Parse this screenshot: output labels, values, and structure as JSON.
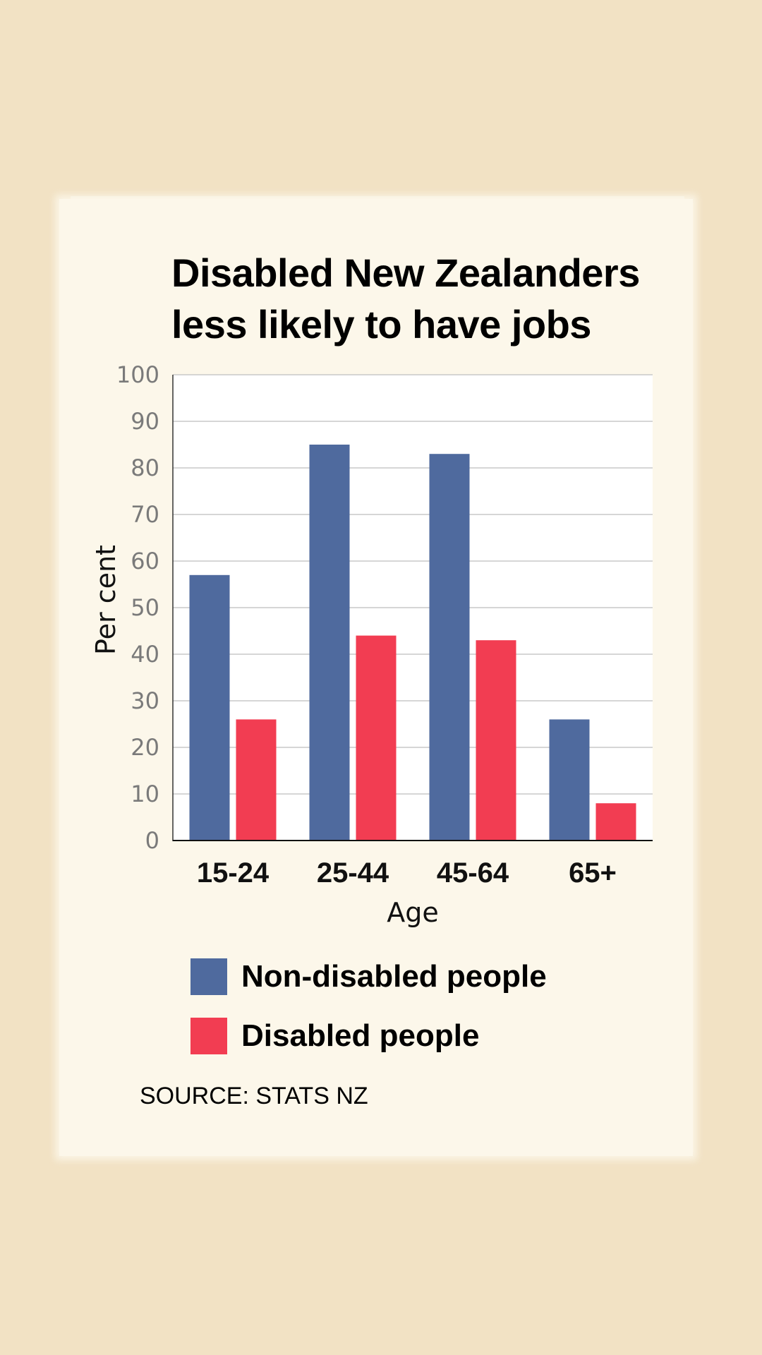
{
  "title": "Disabled New Zealanders less likely to have jobs",
  "title_lines": [
    "Disabled New Zealanders",
    "less likely to have jobs"
  ],
  "source": "SOURCE: STATS NZ",
  "colors": {
    "background": "#F2E2C4",
    "panel": "#FCF7EA",
    "non_disabled": "#4F6A9E",
    "disabled": "#F23D52",
    "grid": "#C8C8C8"
  },
  "chart_data": {
    "type": "bar",
    "title": "Disabled New Zealanders less likely to have jobs",
    "xlabel": "Age",
    "ylabel": "Per cent",
    "categories": [
      "15-24",
      "25-44",
      "45-64",
      "65+"
    ],
    "series": [
      {
        "name": "Non-disabled people",
        "color": "#4F6A9E",
        "values": [
          57,
          85,
          83,
          26
        ]
      },
      {
        "name": "Disabled people",
        "color": "#F23D52",
        "values": [
          26,
          44,
          43,
          8
        ]
      }
    ],
    "ylim": [
      0,
      100
    ],
    "yticks": [
      0,
      10,
      20,
      30,
      40,
      50,
      60,
      70,
      80,
      90,
      100
    ],
    "grid": true,
    "legend": "bottom",
    "source": "SOURCE: STATS NZ"
  }
}
